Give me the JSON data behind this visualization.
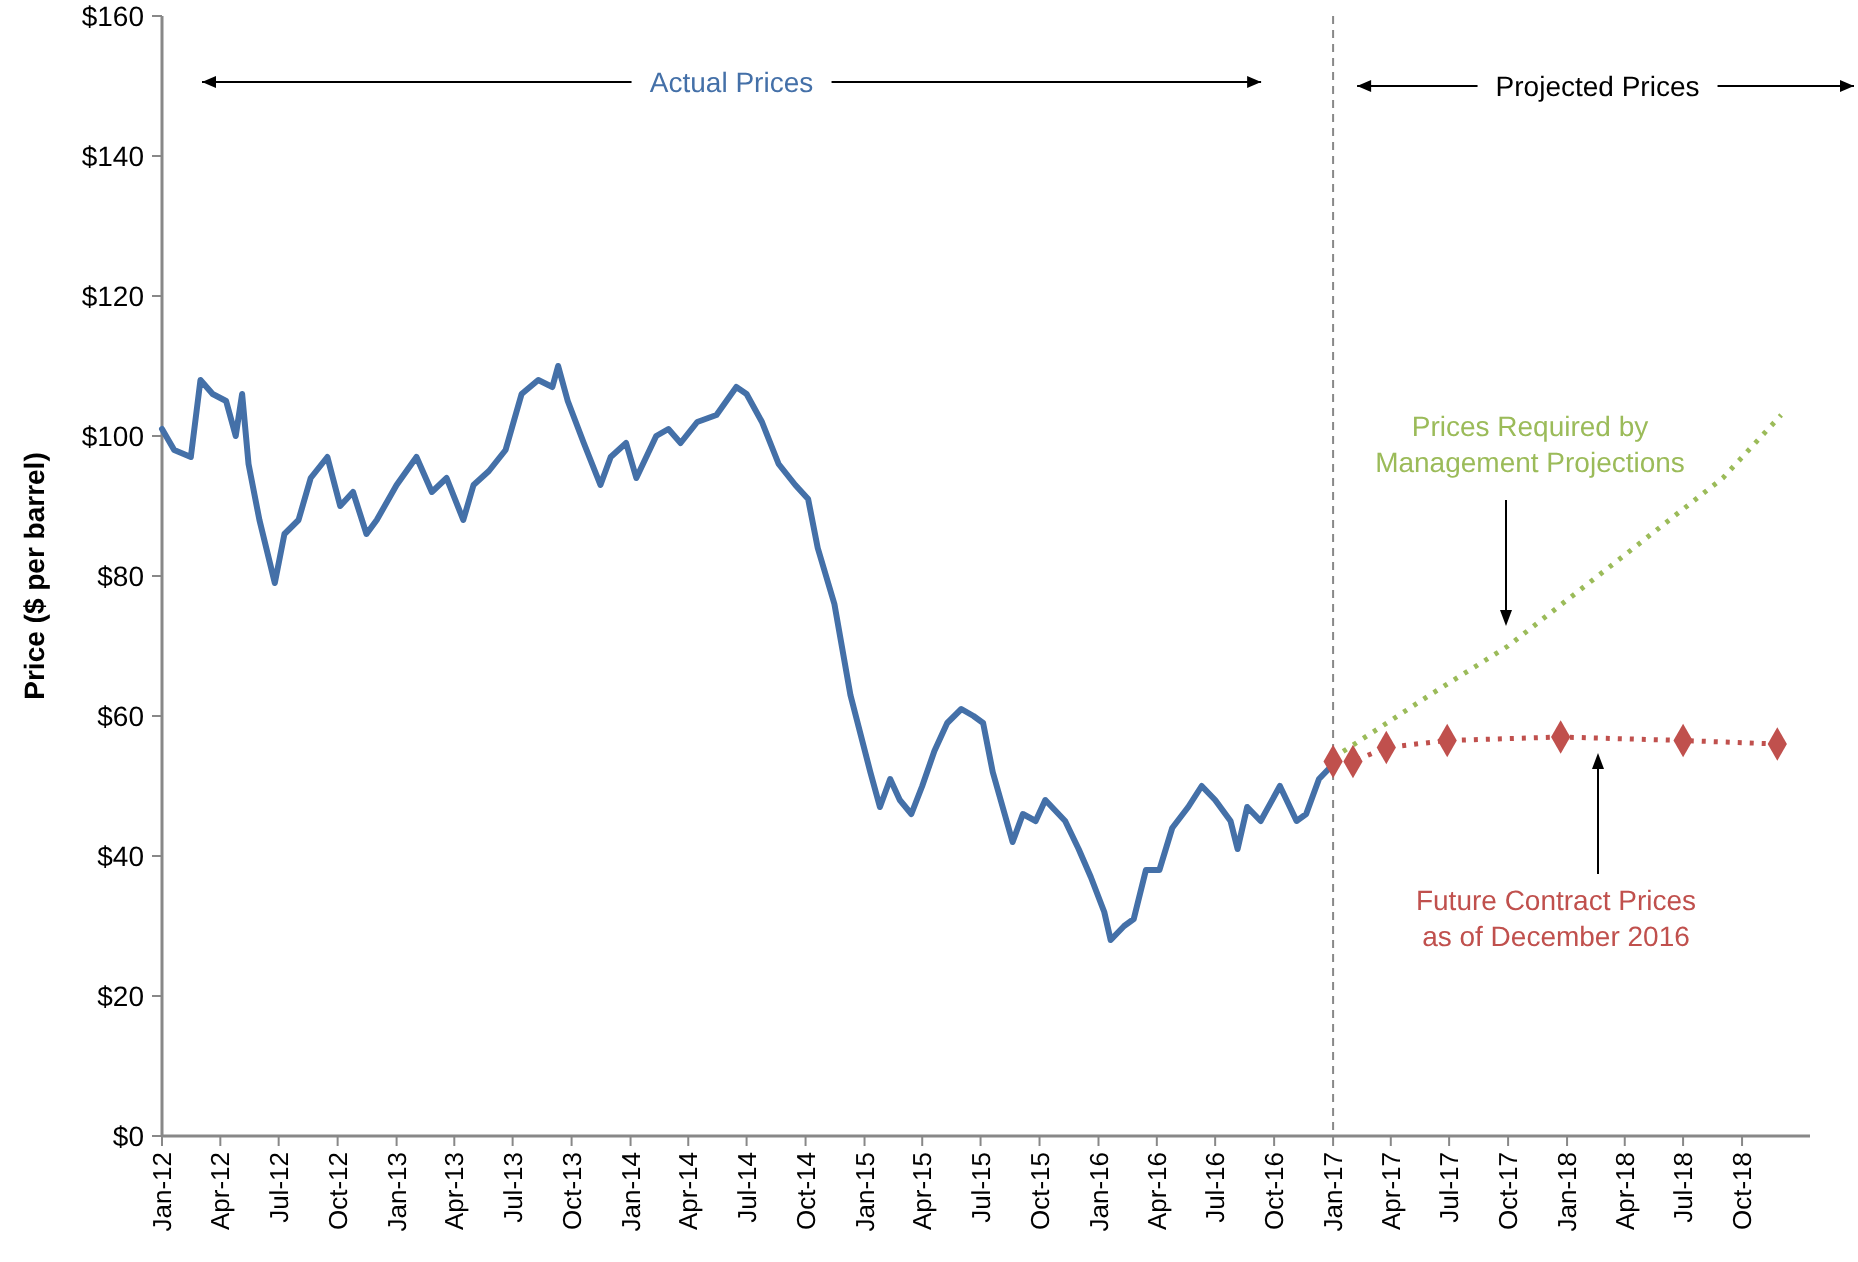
{
  "chart_data": {
    "type": "line",
    "ylabel": "Price ($ per barrel)",
    "xlim": [
      "2012-01-01",
      "2019-01-15"
    ],
    "xticks": [
      {
        "value": "2012-01-01",
        "label": "Jan-12"
      },
      {
        "value": "2012-04-01",
        "label": "Apr-12"
      },
      {
        "value": "2012-07-01",
        "label": "Jul-12"
      },
      {
        "value": "2012-10-01",
        "label": "Oct-12"
      },
      {
        "value": "2013-01-01",
        "label": "Jan-13"
      },
      {
        "value": "2013-04-01",
        "label": "Apr-13"
      },
      {
        "value": "2013-07-01",
        "label": "Jul-13"
      },
      {
        "value": "2013-10-01",
        "label": "Oct-13"
      },
      {
        "value": "2014-01-01",
        "label": "Jan-14"
      },
      {
        "value": "2014-04-01",
        "label": "Apr-14"
      },
      {
        "value": "2014-07-01",
        "label": "Jul-14"
      },
      {
        "value": "2014-10-01",
        "label": "Oct-14"
      },
      {
        "value": "2015-01-01",
        "label": "Jan-15"
      },
      {
        "value": "2015-04-01",
        "label": "Apr-15"
      },
      {
        "value": "2015-07-01",
        "label": "Jul-15"
      },
      {
        "value": "2015-10-01",
        "label": "Oct-15"
      },
      {
        "value": "2016-01-01",
        "label": "Jan-16"
      },
      {
        "value": "2016-04-01",
        "label": "Apr-16"
      },
      {
        "value": "2016-07-01",
        "label": "Jul-16"
      },
      {
        "value": "2016-10-01",
        "label": "Oct-16"
      },
      {
        "value": "2017-01-01",
        "label": "Jan-17"
      },
      {
        "value": "2017-04-01",
        "label": "Apr-17"
      },
      {
        "value": "2017-07-01",
        "label": "Jul-17"
      },
      {
        "value": "2017-10-01",
        "label": "Oct-17"
      },
      {
        "value": "2018-01-01",
        "label": "Jan-18"
      },
      {
        "value": "2018-04-01",
        "label": "Apr-18"
      },
      {
        "value": "2018-07-01",
        "label": "Jul-18"
      },
      {
        "value": "2018-10-01",
        "label": "Oct-18"
      }
    ],
    "ylim": [
      0,
      160
    ],
    "yticks": [
      {
        "value": 0,
        "label": "$0"
      },
      {
        "value": 20,
        "label": "$20"
      },
      {
        "value": 40,
        "label": "$40"
      },
      {
        "value": 60,
        "label": "$60"
      },
      {
        "value": 80,
        "label": "$80"
      },
      {
        "value": 100,
        "label": "$100"
      },
      {
        "value": 120,
        "label": "$120"
      },
      {
        "value": 140,
        "label": "$140"
      },
      {
        "value": 160,
        "label": "$160"
      }
    ],
    "grid": false,
    "legend": false,
    "ref_lines": [
      {
        "axis": "x",
        "value": "2017-01-01",
        "color": "#888888",
        "line_style": "dashed"
      }
    ],
    "annotations": [
      "Projected Prices"
    ],
    "series": [
      {
        "name": "Actual Prices",
        "color": "#4470a8",
        "marker": "none",
        "line_style": "solid",
        "x": [
          "2012-01-01",
          "2012-01-20",
          "2012-02-15",
          "2012-03-01",
          "2012-03-20",
          "2012-04-10",
          "2012-04-25",
          "2012-05-05",
          "2012-05-15",
          "2012-06-01",
          "2012-06-25",
          "2012-07-10",
          "2012-08-01",
          "2012-08-20",
          "2012-09-15",
          "2012-10-05",
          "2012-10-25",
          "2012-11-15",
          "2012-12-01",
          "2013-01-01",
          "2013-02-01",
          "2013-02-25",
          "2013-03-20",
          "2013-04-15",
          "2013-05-01",
          "2013-05-25",
          "2013-06-20",
          "2013-07-15",
          "2013-08-10",
          "2013-09-01",
          "2013-09-10",
          "2013-09-25",
          "2013-10-20",
          "2013-11-15",
          "2013-12-01",
          "2013-12-25",
          "2014-01-10",
          "2014-02-10",
          "2014-03-01",
          "2014-03-20",
          "2014-04-15",
          "2014-05-15",
          "2014-06-15",
          "2014-07-01",
          "2014-07-25",
          "2014-08-20",
          "2014-09-15",
          "2014-10-05",
          "2014-10-20",
          "2014-11-15",
          "2014-12-10",
          "2015-01-10",
          "2015-01-25",
          "2015-02-10",
          "2015-02-25",
          "2015-03-15",
          "2015-04-01",
          "2015-04-20",
          "2015-05-10",
          "2015-06-01",
          "2015-06-20",
          "2015-07-05",
          "2015-07-20",
          "2015-08-20",
          "2015-09-05",
          "2015-09-25",
          "2015-10-10",
          "2015-11-10",
          "2015-12-01",
          "2015-12-20",
          "2016-01-10",
          "2016-01-20",
          "2016-02-10",
          "2016-02-25",
          "2016-03-15",
          "2016-04-05",
          "2016-04-25",
          "2016-05-20",
          "2016-06-10",
          "2016-07-01",
          "2016-07-25",
          "2016-08-05",
          "2016-08-20",
          "2016-09-10",
          "2016-10-10",
          "2016-11-05",
          "2016-11-20",
          "2016-12-10",
          "2016-12-31"
        ],
        "values": [
          101,
          98,
          97,
          108,
          106,
          105,
          100,
          106,
          96,
          88,
          79,
          86,
          88,
          94,
          97,
          90,
          92,
          86,
          88,
          93,
          97,
          92,
          94,
          88,
          93,
          95,
          98,
          106,
          108,
          107,
          110,
          105,
          99,
          93,
          97,
          99,
          94,
          100,
          101,
          99,
          102,
          103,
          107,
          106,
          102,
          96,
          93,
          91,
          84,
          76,
          63,
          52,
          47,
          51,
          48,
          46,
          50,
          55,
          59,
          61,
          60,
          59,
          52,
          42,
          46,
          45,
          48,
          45,
          41,
          37,
          32,
          28,
          30,
          31,
          38,
          38,
          44,
          47,
          50,
          48,
          45,
          41,
          47,
          45,
          50,
          45,
          46,
          51,
          53
        ]
      },
      {
        "name": "Prices Required by Management Projections",
        "color": "#9bbb59",
        "marker": "none",
        "line_style": "dotted",
        "x": [
          "2017-01-01",
          "2017-06-01",
          "2017-10-01",
          "2018-04-01",
          "2018-09-01",
          "2018-12-01"
        ],
        "values": [
          54,
          63,
          70,
          83,
          94,
          103
        ]
      },
      {
        "name": "Future Contract Prices as of December 2016",
        "color": "#c0504d",
        "marker": "diamond",
        "line_style": "dotted",
        "x": [
          "2017-01-01",
          "2017-02-01",
          "2017-03-25",
          "2017-06-28",
          "2017-12-22",
          "2018-07-01",
          "2018-11-25"
        ],
        "values": [
          53.5,
          53.5,
          55.5,
          56.5,
          57,
          56.5,
          56
        ]
      }
    ]
  }
}
